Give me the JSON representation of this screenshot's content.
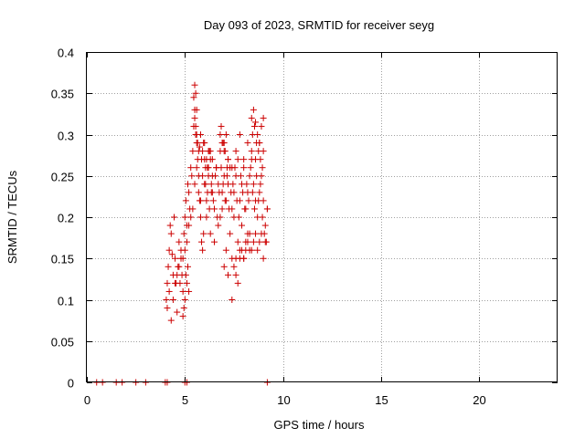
{
  "chart_data": {
    "type": "scatter",
    "title": "Day 093 of 2023, SRMTID for receiver seyg",
    "xlabel": "GPS time / hours",
    "ylabel": "SRMTID / TECUs",
    "xlim": [
      0,
      24
    ],
    "ylim": [
      0,
      0.4
    ],
    "xticks": [
      0,
      5,
      10,
      15,
      20
    ],
    "xtick_labels": [
      "0",
      "5",
      "10",
      "15",
      "20"
    ],
    "yticks": [
      0,
      0.05,
      0.1,
      0.15,
      0.2,
      0.25,
      0.3,
      0.35,
      0.4
    ],
    "ytick_labels": [
      "0",
      "0.05",
      "0.1",
      "0.15",
      "0.2",
      "0.25",
      "0.3",
      "0.35",
      "0.4"
    ],
    "grid": true,
    "marker": "plus",
    "color": "#cc0000",
    "series": [
      {
        "name": "SRMTID",
        "x": [
          0.5,
          0.8,
          1.5,
          1.8,
          2.5,
          3.0,
          4.0,
          4.1,
          5.0,
          5.1,
          9.2,
          4.05,
          4.1,
          4.15,
          4.2,
          4.25,
          4.3,
          4.35,
          4.4,
          4.45,
          4.5,
          4.55,
          4.6,
          4.65,
          4.7,
          4.75,
          4.8,
          4.85,
          4.9,
          4.95,
          5.0,
          5.05,
          5.1,
          5.15,
          5.2,
          5.25,
          5.3,
          5.35,
          5.4,
          5.45,
          5.5,
          5.55,
          5.6,
          5.65,
          5.7,
          5.75,
          5.8,
          5.85,
          5.9,
          5.95,
          4.1,
          4.2,
          4.3,
          4.4,
          4.5,
          4.6,
          4.7,
          4.8,
          4.9,
          5.0,
          5.1,
          5.2,
          5.3,
          5.4,
          5.5,
          5.6,
          5.7,
          5.8,
          5.9,
          6.0,
          6.0,
          6.1,
          6.2,
          6.3,
          6.4,
          6.5,
          6.6,
          6.7,
          6.8,
          6.9,
          7.0,
          7.1,
          7.2,
          7.3,
          7.4,
          7.5,
          7.6,
          7.7,
          7.8,
          7.9,
          8.0,
          8.1,
          8.2,
          8.3,
          8.4,
          8.5,
          8.6,
          8.7,
          8.8,
          8.9,
          9.0,
          9.1,
          9.2,
          6.05,
          6.15,
          6.25,
          6.35,
          6.45,
          6.55,
          6.65,
          6.75,
          6.85,
          6.95,
          7.05,
          7.15,
          7.25,
          7.35,
          7.45,
          7.55,
          7.65,
          7.75,
          7.85,
          7.95,
          8.05,
          8.15,
          8.25,
          8.35,
          8.45,
          8.55,
          8.65,
          8.75,
          8.85,
          8.95,
          9.05,
          9.15,
          6.1,
          6.3,
          6.5,
          6.7,
          6.9,
          7.1,
          7.3,
          7.5,
          7.7,
          7.9,
          8.1,
          8.3,
          8.5,
          8.7,
          8.9,
          9.1,
          6.2,
          6.4,
          6.6,
          6.8,
          7.0,
          7.2,
          7.4,
          7.6,
          7.8,
          8.0,
          8.2,
          8.4,
          8.6,
          8.8,
          9.0,
          9.2,
          5.45,
          5.5,
          5.55,
          5.6,
          5.5,
          5.55,
          5.6,
          5.65,
          5.7,
          5.75,
          8.4,
          8.5,
          8.6,
          8.7,
          8.8,
          8.9,
          9.0,
          8.45,
          8.55,
          8.65,
          8.75,
          8.85,
          8.95,
          7.4,
          7.5,
          7.6,
          7.7,
          7.8,
          7.9,
          8.0,
          8.1,
          8.2,
          8.3,
          6.8,
          6.9,
          7.0,
          7.1,
          7.2,
          6.85,
          6.95,
          7.05,
          7.15,
          4.9,
          5.0,
          5.1,
          5.2,
          4.95,
          5.05,
          5.15,
          7.0,
          7.2,
          7.4,
          7.6,
          7.8,
          8.0,
          8.2,
          8.4,
          8.6,
          8.8,
          9.0,
          5.8,
          5.9,
          6.0,
          6.1,
          6.2,
          6.3,
          6.4,
          5.85,
          5.95,
          6.05,
          6.15,
          6.25,
          6.35
        ],
        "y": [
          0,
          0,
          0,
          0,
          0,
          0,
          0,
          0,
          0,
          0,
          0,
          0.1,
          0.12,
          0.14,
          0.16,
          0.19,
          0.18,
          0.155,
          0.13,
          0.2,
          0.15,
          0.12,
          0.13,
          0.14,
          0.17,
          0.12,
          0.16,
          0.13,
          0.15,
          0.18,
          0.2,
          0.22,
          0.19,
          0.24,
          0.23,
          0.21,
          0.26,
          0.25,
          0.28,
          0.31,
          0.33,
          0.3,
          0.29,
          0.27,
          0.25,
          0.22,
          0.2,
          0.17,
          0.16,
          0.18,
          0.09,
          0.11,
          0.075,
          0.1,
          0.12,
          0.085,
          0.14,
          0.15,
          0.11,
          0.16,
          0.17,
          0.19,
          0.2,
          0.21,
          0.24,
          0.26,
          0.23,
          0.22,
          0.25,
          0.27,
          0.24,
          0.22,
          0.25,
          0.27,
          0.23,
          0.21,
          0.26,
          0.24,
          0.2,
          0.23,
          0.25,
          0.22,
          0.24,
          0.26,
          0.21,
          0.23,
          0.25,
          0.27,
          0.22,
          0.24,
          0.26,
          0.21,
          0.23,
          0.25,
          0.27,
          0.24,
          0.22,
          0.2,
          0.23,
          0.25,
          0.22,
          0.19,
          0.21,
          0.26,
          0.23,
          0.21,
          0.24,
          0.22,
          0.25,
          0.2,
          0.23,
          0.26,
          0.24,
          0.22,
          0.25,
          0.21,
          0.23,
          0.24,
          0.26,
          0.22,
          0.2,
          0.25,
          0.23,
          0.21,
          0.24,
          0.22,
          0.26,
          0.23,
          0.21,
          0.25,
          0.22,
          0.24,
          0.2,
          0.18,
          0.17,
          0.2,
          0.18,
          0.17,
          0.19,
          0.21,
          0.16,
          0.18,
          0.2,
          0.17,
          0.19,
          0.16,
          0.18,
          0.17,
          0.16,
          0.18,
          0.17,
          0.28,
          0.27,
          0.26,
          0.28,
          0.29,
          0.27,
          0.26,
          0.28,
          0.3,
          0.27,
          0.29,
          0.28,
          0.27,
          0.29,
          0.28,
          0.21,
          0.345,
          0.36,
          0.35,
          0.33,
          0.32,
          0.31,
          0.3,
          0.29,
          0.28,
          0.285,
          0.32,
          0.33,
          0.315,
          0.3,
          0.29,
          0.31,
          0.32,
          0.3,
          0.31,
          0.29,
          0.28,
          0.27,
          0.26,
          0.15,
          0.14,
          0.13,
          0.12,
          0.15,
          0.16,
          0.15,
          0.17,
          0.18,
          0.16,
          0.3,
          0.29,
          0.28,
          0.3,
          0.27,
          0.31,
          0.29,
          0.28,
          0.26,
          0.08,
          0.1,
          0.12,
          0.11,
          0.09,
          0.13,
          0.14,
          0.14,
          0.13,
          0.1,
          0.15,
          0.16,
          0.15,
          0.17,
          0.16,
          0.18,
          0.17,
          0.15,
          0.3,
          0.28,
          0.29,
          0.27,
          0.26,
          0.28,
          0.25,
          0.27,
          0.29,
          0.24,
          0.26,
          0.28,
          0.23
        ]
      }
    ]
  }
}
